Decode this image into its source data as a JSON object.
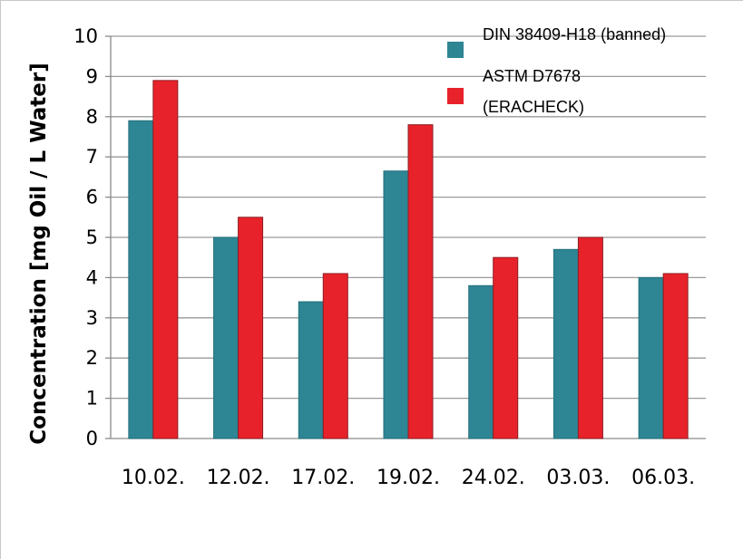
{
  "chart_data": {
    "type": "bar",
    "title": "",
    "xlabel": "",
    "ylabel": "Concentration [mg Oil / L Water]",
    "ylim": [
      0,
      10
    ],
    "yticks": [
      "0",
      "1",
      "2",
      "3",
      "4",
      "5",
      "6",
      "7",
      "8",
      "9",
      "10"
    ],
    "grid": true,
    "legend_position": "top-right",
    "categories": [
      "10.02.",
      "12.02.",
      "17.02.",
      "19.02.",
      "24.02.",
      "03.03.",
      "06.03."
    ],
    "series": [
      {
        "name": "DIN 38409-H18 (banned)",
        "color": "#2e8593",
        "values": [
          7.9,
          5.0,
          3.4,
          6.65,
          3.8,
          4.7,
          4.0
        ]
      },
      {
        "name": "ASTM D7678 (ERACHECK)",
        "name_lines": [
          "ASTM D7678",
          "(ERACHECK)"
        ],
        "color": "#e8222a",
        "values": [
          8.9,
          5.5,
          4.1,
          7.8,
          4.5,
          5.0,
          4.1
        ]
      }
    ]
  }
}
